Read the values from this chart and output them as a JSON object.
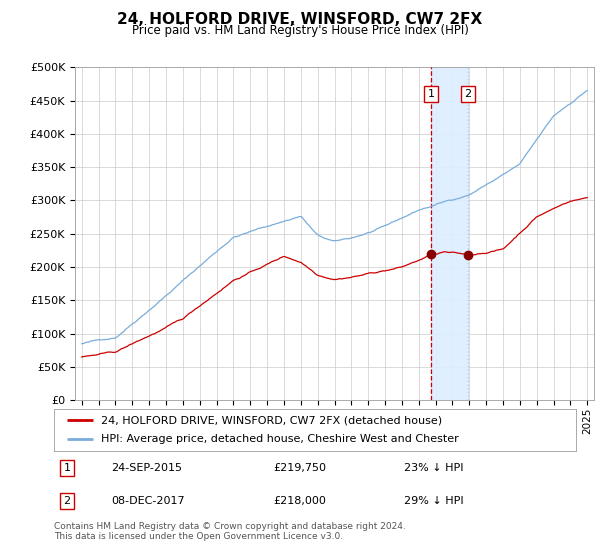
{
  "title": "24, HOLFORD DRIVE, WINSFORD, CW7 2FX",
  "subtitle": "Price paid vs. HM Land Registry's House Price Index (HPI)",
  "legend_line1": "24, HOLFORD DRIVE, WINSFORD, CW7 2FX (detached house)",
  "legend_line2": "HPI: Average price, detached house, Cheshire West and Chester",
  "transaction1_date": "24-SEP-2015",
  "transaction1_price": 219750,
  "transaction1_label": "23% ↓ HPI",
  "transaction2_date": "08-DEC-2017",
  "transaction2_price": 218000,
  "transaction2_label": "29% ↓ HPI",
  "footer": "Contains HM Land Registry data © Crown copyright and database right 2024.\nThis data is licensed under the Open Government Licence v3.0.",
  "hpi_color": "#7aaddc",
  "price_color": "#cc0000",
  "marker_color": "#880000",
  "vline1_color": "#cc0000",
  "vline2_color": "#aaccee",
  "shade_color": "#ddeeff",
  "ylim": [
    0,
    500000
  ],
  "yticks": [
    0,
    50000,
    100000,
    150000,
    200000,
    250000,
    300000,
    350000,
    400000,
    450000,
    500000
  ],
  "x_start_year": 1995,
  "x_end_year": 2025,
  "transaction1_year": 2015.73,
  "transaction2_year": 2017.93
}
